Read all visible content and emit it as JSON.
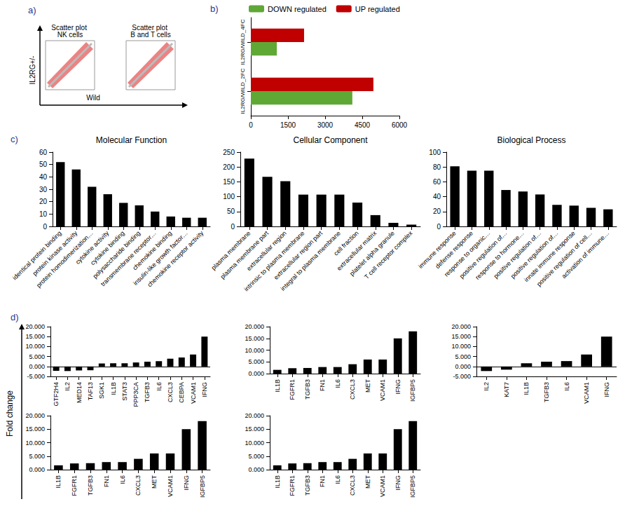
{
  "chart_data": [
    {
      "type": "scatter",
      "panel": "a)",
      "subplots": [
        {
          "title": "Scatter plot NK cells"
        },
        {
          "title": "Scatter plot B and T cells"
        }
      ],
      "xlabel": "Wild",
      "ylabel": "IL2RG+/-"
    },
    {
      "type": "bar",
      "panel": "b)",
      "orientation": "horizontal",
      "grid": false,
      "legend": "top",
      "categories": [
        "IL2RG/WILD_2FC",
        "IL2RG/WILD_4FC"
      ],
      "series": [
        {
          "name": "DOWN regulated",
          "color": "#5fa836",
          "values": [
            4100,
            1050
          ]
        },
        {
          "name": "UP regulated",
          "color": "#c00000",
          "values": [
            4950,
            2150
          ]
        }
      ],
      "xlim": [
        0,
        6000
      ],
      "xticks": [
        0,
        1500,
        3000,
        4500,
        6000
      ]
    },
    {
      "type": "bar",
      "panel": "c)",
      "title": "Molecular Function",
      "grid": false,
      "color": "#000000",
      "categories": [
        "identical protein binding",
        "protein kinase activity",
        "protein homodimerization…",
        "cytokine activity",
        "cytokine binding",
        "polysaccharide binding",
        "transmembrane receptor…",
        "chemokine binding",
        "insulin-like growth factor…",
        "chemokine receptor activity"
      ],
      "values": [
        52,
        46,
        32,
        26,
        19,
        17,
        12,
        8,
        7,
        7
      ],
      "ylim": [
        0,
        60
      ],
      "yticks": [
        0,
        10,
        20,
        30,
        40,
        50,
        60
      ]
    },
    {
      "type": "bar",
      "title": "Cellular Component",
      "grid": false,
      "color": "#000000",
      "categories": [
        "plasma membrane",
        "plasma membrane part",
        "extracellular region",
        "intrinsic to plasma membrane",
        "extracellular region part",
        "integral to plasma membrane",
        "cell fraction",
        "extracellular matrix",
        "platelet alpha granule",
        "T cell receptor complex"
      ],
      "values": [
        228,
        167,
        152,
        107,
        107,
        107,
        80,
        38,
        12,
        6
      ],
      "ylim": [
        0,
        250
      ],
      "yticks": [
        0,
        50,
        100,
        150,
        200,
        250
      ]
    },
    {
      "type": "bar",
      "title": "Biological Process",
      "grid": false,
      "color": "#000000",
      "categories": [
        "immune response",
        "defense response",
        "response to organic…",
        "positive regulation of…",
        "response to hormone…",
        "positive regulation of…",
        "positive regulation of…",
        "innate immune response",
        "positive regulation of cell…",
        "activation of immune…"
      ],
      "values": [
        81,
        75,
        75,
        49,
        47,
        43,
        29,
        28,
        25,
        23
      ],
      "ylim": [
        0,
        100
      ],
      "yticks": [
        0,
        20,
        40,
        60,
        80,
        100
      ]
    },
    {
      "type": "bar",
      "panel": "d)",
      "ylabel": "Fold change",
      "grid": false,
      "color": "#000000",
      "categories": [
        "GTF2H4",
        "IL2",
        "MED14",
        "TAF13",
        "SGK1",
        "IL1B",
        "STAT3",
        "PPP3CA",
        "TGFB3",
        "IL6",
        "CXCL3",
        "CEBPA",
        "VCAM1",
        "IFNG"
      ],
      "values": [
        -2.2,
        -2.3,
        -2.0,
        -1.9,
        1.5,
        1.6,
        1.6,
        2.0,
        2.4,
        2.7,
        3.9,
        4.5,
        6.0,
        15.0
      ],
      "ylim": [
        -5,
        20
      ],
      "yticks": [
        {
          "value": -5,
          "label": "-5.000"
        },
        {
          "value": 0,
          "label": "0.000"
        },
        {
          "value": 5,
          "label": "5.000"
        },
        {
          "value": 10,
          "label": "10.000"
        },
        {
          "value": 15,
          "label": "15.000"
        },
        {
          "value": 20,
          "label": "20.000"
        }
      ]
    },
    {
      "type": "bar",
      "grid": false,
      "color": "#000000",
      "categories": [
        "IL1B",
        "FGFR1",
        "TGFB3",
        "FN1",
        "IL6",
        "CXCL3",
        "MET",
        "VCAM1",
        "IFNG",
        "IGFBP5"
      ],
      "values": [
        1.6,
        2.3,
        2.4,
        2.8,
        2.8,
        4.0,
        6.0,
        6.0,
        15.0,
        18.0
      ],
      "ylim": [
        0,
        20
      ],
      "yticks": [
        {
          "value": 0,
          "label": "0.000"
        },
        {
          "value": 5,
          "label": "5.000"
        },
        {
          "value": 10,
          "label": "10.000"
        },
        {
          "value": 15,
          "label": "15.000"
        },
        {
          "value": 20,
          "label": "20.000"
        }
      ]
    },
    {
      "type": "bar",
      "grid": false,
      "color": "#000000",
      "categories": [
        "IL2",
        "KAT7",
        "IL1B",
        "TGFB3",
        "IL6",
        "VCAM1",
        "IFNG"
      ],
      "values": [
        -2.3,
        -1.6,
        1.6,
        2.4,
        2.7,
        6.0,
        15.0
      ],
      "ylim": [
        -5,
        20
      ],
      "yticks": [
        {
          "value": -5,
          "label": "-5.000"
        },
        {
          "value": 0,
          "label": "0.000"
        },
        {
          "value": 5,
          "label": "5.000"
        },
        {
          "value": 10,
          "label": "10.000"
        },
        {
          "value": 15,
          "label": "15.000"
        },
        {
          "value": 20,
          "label": "20.000"
        }
      ]
    },
    {
      "type": "bar",
      "grid": false,
      "color": "#000000",
      "categories": [
        "IL1B",
        "FGFR1",
        "TGFB3",
        "FN1",
        "IL6",
        "CXCL3",
        "MET",
        "VCAM1",
        "IFNG",
        "IGFBP5"
      ],
      "values": [
        1.6,
        2.3,
        2.4,
        2.8,
        2.8,
        4.0,
        6.0,
        6.0,
        15.0,
        18.0
      ],
      "ylim": [
        0,
        20
      ],
      "yticks": [
        {
          "value": 0,
          "label": "0.000"
        },
        {
          "value": 5,
          "label": "5.000"
        },
        {
          "value": 10,
          "label": "10.000"
        },
        {
          "value": 15,
          "label": "15.000"
        },
        {
          "value": 20,
          "label": "20.000"
        }
      ]
    },
    {
      "type": "bar",
      "grid": false,
      "color": "#000000",
      "categories": [
        "IL1B",
        "FGFR1",
        "TGFB3",
        "FN1",
        "IL6",
        "CXCL3",
        "MET",
        "VCAM1",
        "IFNG",
        "IGFBP5"
      ],
      "values": [
        1.6,
        2.3,
        2.4,
        2.8,
        2.8,
        4.0,
        6.0,
        6.0,
        15.0,
        18.0
      ],
      "ylim": [
        0,
        20
      ],
      "yticks": [
        {
          "value": 0,
          "label": "0.000"
        },
        {
          "value": 5,
          "label": "5.000"
        },
        {
          "value": 10,
          "label": "10.000"
        },
        {
          "value": 15,
          "label": "15.000"
        },
        {
          "value": 20,
          "label": "20.000"
        }
      ]
    }
  ]
}
